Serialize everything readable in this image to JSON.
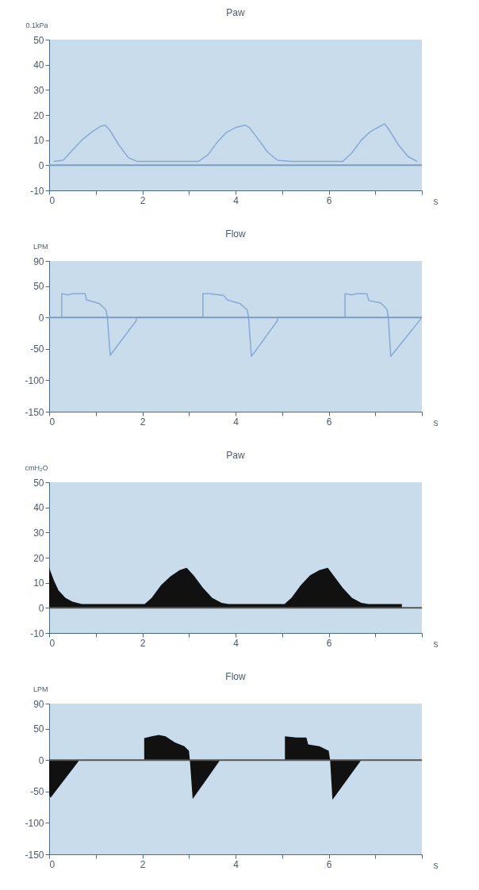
{
  "chart_data": [
    {
      "type": "line",
      "title": "Paw",
      "ylabel": "0.1kPa",
      "xlabel": "s",
      "xlim": [
        0,
        8
      ],
      "ylim": [
        -10,
        50
      ],
      "xticks": [
        0,
        {
          "value": 1,
          "label": null
        },
        2,
        {
          "value": 3,
          "label": null
        },
        4,
        {
          "value": 5,
          "label": null
        },
        6,
        {
          "value": 7,
          "label": null
        },
        {
          "value": 8,
          "label": null
        }
      ],
      "yticks": [
        -10,
        0,
        10,
        20,
        30,
        40,
        50
      ],
      "grid": false,
      "ref_lines": [
        {
          "axis": "y",
          "value": 0,
          "color": "#7f9cc6"
        }
      ],
      "series": [
        {
          "color": "#8aa8d4",
          "x": [
            0.1,
            0.3,
            0.5,
            0.7,
            0.9,
            1.1,
            1.2,
            1.3,
            1.5,
            1.7,
            1.9,
            3.2,
            3.4,
            3.6,
            3.8,
            4.0,
            4.2,
            4.3,
            4.5,
            4.7,
            4.9,
            5.2,
            6.3,
            6.5,
            6.7,
            6.9,
            7.1,
            7.2,
            7.3,
            7.5,
            7.7,
            7.9
          ],
          "values": [
            1.5,
            2,
            6,
            10,
            13,
            15.5,
            16,
            14,
            8,
            3,
            1.5,
            1.5,
            4,
            9,
            13,
            15,
            16,
            15,
            10,
            5,
            2,
            1.5,
            1.5,
            5,
            10,
            13.5,
            15.5,
            16.5,
            14,
            8,
            3.5,
            1.5
          ]
        }
      ]
    },
    {
      "type": "line",
      "title": "Flow",
      "ylabel": "LPM",
      "xlabel": "s",
      "xlim": [
        0,
        8
      ],
      "ylim": [
        -150,
        90
      ],
      "xticks": [
        0,
        {
          "value": 1,
          "label": null
        },
        2,
        {
          "value": 3,
          "label": null
        },
        4,
        {
          "value": 5,
          "label": null
        },
        6,
        {
          "value": 7,
          "label": null
        },
        {
          "value": 8,
          "label": null
        }
      ],
      "yticks": [
        -150,
        -100,
        -50,
        0,
        50,
        90
      ],
      "grid": false,
      "ref_lines": [
        {
          "axis": "y",
          "value": 0,
          "color": "#7f9cc6"
        }
      ],
      "series": [
        {
          "color": "#8aa8d4",
          "x": [
            0.27,
            0.27,
            0.4,
            0.5,
            0.77,
            0.8,
            1.08,
            1.22,
            1.25,
            1.31,
            1.87,
            1.87,
            3.3,
            3.3,
            3.45,
            3.55,
            3.75,
            3.82,
            4.1,
            4.25,
            4.28,
            4.34,
            4.9,
            4.9,
            6.35,
            6.35,
            6.5,
            6.6,
            6.82,
            6.86,
            7.12,
            7.25,
            7.28,
            7.33,
            7.97,
            7.97
          ],
          "values": [
            0,
            38,
            36,
            38,
            38,
            28,
            22,
            12,
            0,
            -60,
            -5,
            0,
            0,
            38,
            38,
            37,
            35,
            28,
            22,
            12,
            0,
            -62,
            -5,
            0,
            0,
            38,
            36,
            38,
            38,
            27,
            23,
            13,
            0,
            -62,
            -3,
            0
          ]
        }
      ]
    },
    {
      "type": "area",
      "title": "Paw",
      "ylabel": "cmH₂O",
      "xlabel": "s",
      "xlim": [
        0,
        8
      ],
      "ylim": [
        -10,
        50
      ],
      "xticks": [
        0,
        {
          "value": 1,
          "label": null
        },
        2,
        {
          "value": 3,
          "label": null
        },
        4,
        {
          "value": 5,
          "label": null
        },
        6,
        {
          "value": 7,
          "label": null
        },
        {
          "value": 8,
          "label": null
        }
      ],
      "yticks": [
        -10,
        0,
        10,
        20,
        30,
        40,
        50
      ],
      "grid": false,
      "ref_lines": [
        {
          "axis": "y",
          "value": 0,
          "color": "#555555"
        }
      ],
      "series": [
        {
          "color": "#111111",
          "x": [
            0,
            0.1,
            0.2,
            0.35,
            0.5,
            0.7,
            2.05,
            2.2,
            2.4,
            2.6,
            2.8,
            2.95,
            3.1,
            3.3,
            3.5,
            3.7,
            3.85,
            5.05,
            5.2,
            5.4,
            5.6,
            5.8,
            5.98,
            6.1,
            6.3,
            6.5,
            6.7,
            6.85,
            7.57
          ],
          "values": [
            16,
            11,
            7,
            4,
            2.5,
            1.5,
            1.5,
            4,
            9,
            12.5,
            15,
            16,
            13,
            8,
            4,
            2,
            1.5,
            1.5,
            4,
            9,
            13,
            15,
            16,
            13,
            8,
            4,
            2,
            1.5,
            1.5
          ]
        }
      ]
    },
    {
      "type": "area",
      "title": "Flow",
      "ylabel": "LPM",
      "xlabel": "s",
      "xlim": [
        0,
        8
      ],
      "ylim": [
        -150,
        90
      ],
      "xticks": [
        0,
        {
          "value": 1,
          "label": null
        },
        2,
        {
          "value": 3,
          "label": null
        },
        4,
        {
          "value": 5,
          "label": null
        },
        6,
        {
          "value": 7,
          "label": null
        },
        {
          "value": 8,
          "label": null
        }
      ],
      "yticks": [
        -150,
        -100,
        -50,
        0,
        50,
        90
      ],
      "grid": false,
      "ref_lines": [
        {
          "axis": "y",
          "value": 0,
          "color": "#555555"
        }
      ],
      "series": [
        {
          "color": "#111111",
          "x": [
            0,
            0.03,
            0.63,
            0.63,
            2.04,
            2.04,
            2.2,
            2.35,
            2.5,
            2.6,
            2.7,
            2.9,
            3.0,
            3.02,
            3.08,
            3.65,
            3.65,
            5.06,
            5.06,
            5.3,
            5.52,
            5.56,
            5.8,
            6.0,
            6.03,
            6.08,
            6.68,
            6.68
          ],
          "values": [
            -55,
            -60,
            -2,
            0,
            0,
            35,
            38,
            40,
            38,
            33,
            28,
            22,
            15,
            0,
            -62,
            -2,
            0,
            0,
            38,
            36,
            36,
            25,
            22,
            15,
            0,
            -63,
            -2,
            0
          ]
        }
      ]
    }
  ]
}
